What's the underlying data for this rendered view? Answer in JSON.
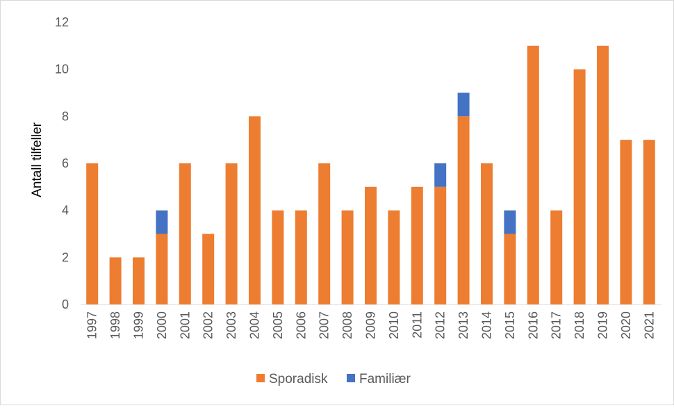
{
  "chart_data": {
    "type": "bar",
    "stacked": true,
    "title": "",
    "xlabel": "",
    "ylabel": "Antall tilfeller",
    "ylim": [
      0,
      12
    ],
    "yticks": [
      0,
      2,
      4,
      6,
      8,
      10,
      12
    ],
    "grid": false,
    "legend_position": "bottom",
    "categories": [
      "1997",
      "1998",
      "1999",
      "2000",
      "2001",
      "2002",
      "2003",
      "2004",
      "2005",
      "2006",
      "2007",
      "2008",
      "2009",
      "2010",
      "2011",
      "2012",
      "2013",
      "2014",
      "2015",
      "2016",
      "2017",
      "2018",
      "2019",
      "2020",
      "2021"
    ],
    "series": [
      {
        "name": "Sporadisk",
        "color": "#ED7D31",
        "values": [
          6,
          2,
          2,
          3,
          6,
          3,
          6,
          8,
          4,
          4,
          6,
          4,
          5,
          4,
          5,
          5,
          8,
          6,
          3,
          11,
          4,
          10,
          11,
          7,
          7
        ]
      },
      {
        "name": "Familiær",
        "color": "#4472C4",
        "values": [
          0,
          0,
          0,
          1,
          0,
          0,
          0,
          0,
          0,
          0,
          0,
          0,
          0,
          0,
          0,
          1,
          1,
          0,
          1,
          0,
          0,
          0,
          0,
          0,
          0
        ]
      }
    ]
  }
}
